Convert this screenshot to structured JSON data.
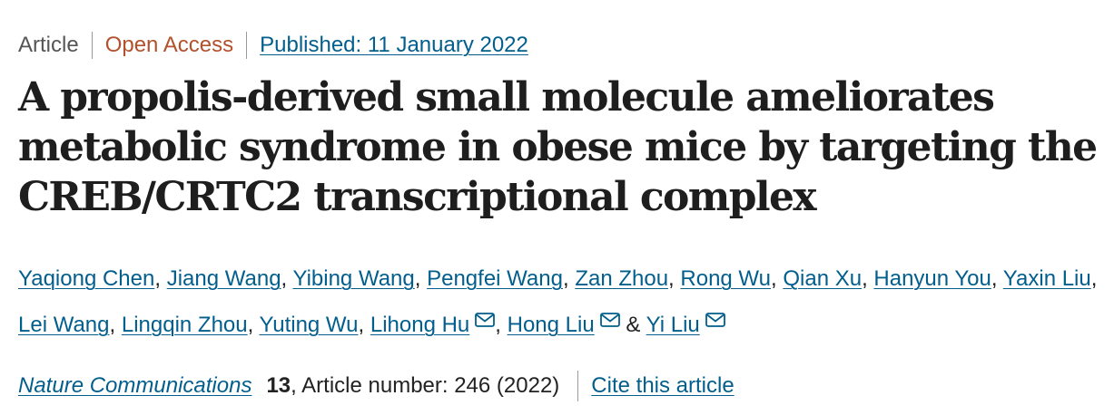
{
  "meta": {
    "article_type": "Article",
    "access": "Open Access",
    "published": "Published: 11 January 2022"
  },
  "title": "A propolis-derived small molecule ameliorates metabolic syndrome in obese mice by targeting the CREB/CRTC2 transcriptional complex",
  "authors": [
    {
      "name": "Yaqiong Chen",
      "sep": ", ",
      "corresponding": false
    },
    {
      "name": "Jiang Wang",
      "sep": ", ",
      "corresponding": false
    },
    {
      "name": "Yibing Wang",
      "sep": ", ",
      "corresponding": false
    },
    {
      "name": "Pengfei Wang",
      "sep": ", ",
      "corresponding": false
    },
    {
      "name": "Zan Zhou",
      "sep": ", ",
      "corresponding": false
    },
    {
      "name": "Rong Wu",
      "sep": ", ",
      "corresponding": false
    },
    {
      "name": "Qian Xu",
      "sep": ", ",
      "corresponding": false
    },
    {
      "name": "Hanyun You",
      "sep": ", ",
      "corresponding": false
    },
    {
      "name": "Yaxin Liu",
      "sep": ", ",
      "corresponding": false
    },
    {
      "name": "Lei Wang",
      "sep": ", ",
      "corresponding": false
    },
    {
      "name": "Lingqin Zhou",
      "sep": ", ",
      "corresponding": false
    },
    {
      "name": "Yuting Wu",
      "sep": ", ",
      "corresponding": false
    },
    {
      "name": "Lihong Hu",
      "sep": ", ",
      "corresponding": true
    },
    {
      "name": "Hong Liu",
      "sep": " & ",
      "corresponding": true
    },
    {
      "name": "Yi Liu",
      "sep": "",
      "corresponding": true
    }
  ],
  "citation": {
    "journal": "Nature Communications",
    "volume": "13",
    "article_number": ", Article number: 246 (2022)",
    "cite_link": "Cite this article"
  },
  "colors": {
    "link": "#025e8d",
    "open_access": "#b2512b",
    "text": "#222222"
  },
  "icons": {
    "corresponding_author": "mail-icon"
  }
}
